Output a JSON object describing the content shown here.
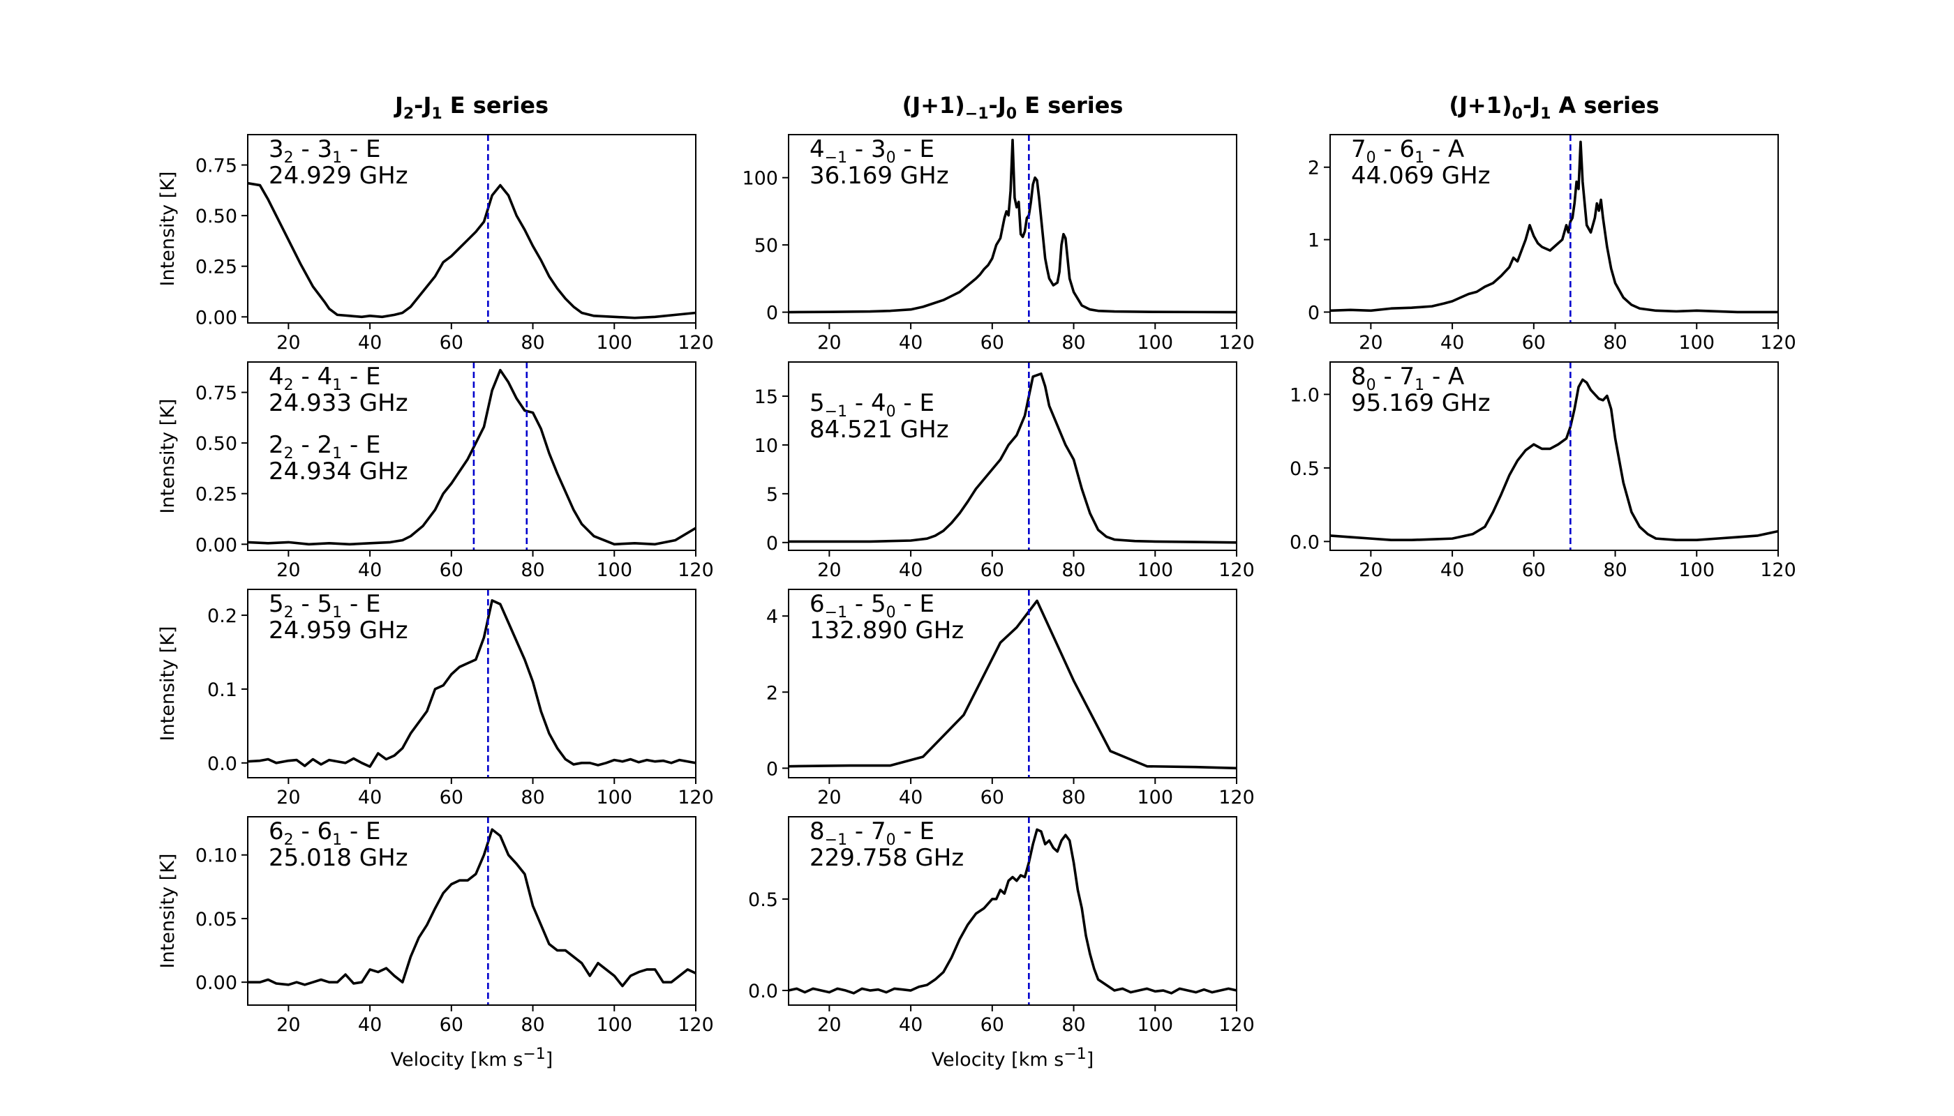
{
  "figure": {
    "column_titles": [
      {
        "main": "J",
        "sub1": "2",
        "mid": "-J",
        "sub2": "1",
        "tail": " E series"
      },
      {
        "main": "(J+1)",
        "sub1": "−1",
        "mid": "-J",
        "sub2": "0",
        "tail": " E series"
      },
      {
        "main": "(J+1)",
        "sub1": "0",
        "mid": "-J",
        "sub2": "1",
        "tail": " A series"
      }
    ],
    "ylabel": "Intensity [K]",
    "xlabel": {
      "text": "Velocity [km s",
      "sup": "−1",
      "close": "]"
    }
  },
  "chart_data": [
    {
      "type": "line",
      "col": 0,
      "row": 0,
      "label": {
        "a": "3",
        "as": "2",
        "b": "3",
        "bs": "1",
        "sym": "E"
      },
      "freq": "24.929 GHz",
      "xlim": [
        10,
        120
      ],
      "ylim": [
        -0.03,
        0.9
      ],
      "yticks": [
        0.0,
        0.25,
        0.5,
        0.75
      ],
      "ytick_labels": [
        "0.00",
        "0.25",
        "0.50",
        "0.75"
      ],
      "xticks": [
        20,
        40,
        60,
        80,
        100,
        120
      ],
      "vlines": [
        69
      ],
      "show_ylabel": true,
      "show_xlabel": false,
      "x": [
        10,
        13,
        15,
        17,
        20,
        23,
        26,
        29,
        30,
        32,
        35,
        38,
        40,
        43,
        46,
        48,
        50,
        52,
        54,
        56,
        58,
        60,
        62,
        64,
        66,
        68,
        70,
        72,
        74,
        76,
        78,
        80,
        82,
        84,
        86,
        88,
        90,
        92,
        95,
        100,
        105,
        110,
        115,
        120
      ],
      "y": [
        0.66,
        0.65,
        0.58,
        0.5,
        0.38,
        0.26,
        0.15,
        0.07,
        0.04,
        0.01,
        0.005,
        0.0,
        0.005,
        0.0,
        0.01,
        0.02,
        0.05,
        0.1,
        0.15,
        0.2,
        0.27,
        0.3,
        0.34,
        0.38,
        0.42,
        0.47,
        0.6,
        0.65,
        0.6,
        0.5,
        0.43,
        0.35,
        0.28,
        0.2,
        0.14,
        0.09,
        0.05,
        0.02,
        0.005,
        0.0,
        -0.005,
        0.0,
        0.01,
        0.02
      ]
    },
    {
      "type": "line",
      "col": 0,
      "row": 1,
      "label": {
        "a": "4",
        "as": "2",
        "b": "4",
        "bs": "1",
        "sym": "E"
      },
      "freq": "24.933 GHz",
      "label2": {
        "a": "2",
        "as": "2",
        "b": "2",
        "bs": "1",
        "sym": "E"
      },
      "freq2": "24.934 GHz",
      "xlim": [
        10,
        120
      ],
      "ylim": [
        -0.03,
        0.9
      ],
      "yticks": [
        0.0,
        0.25,
        0.5,
        0.75
      ],
      "ytick_labels": [
        "0.00",
        "0.25",
        "0.50",
        "0.75"
      ],
      "xticks": [
        20,
        40,
        60,
        80,
        100,
        120
      ],
      "vlines": [
        65.5,
        78.5
      ],
      "show_ylabel": true,
      "show_xlabel": false,
      "x": [
        10,
        15,
        20,
        25,
        30,
        35,
        40,
        45,
        48,
        50,
        53,
        56,
        58,
        60,
        62,
        64,
        66,
        68,
        70,
        72,
        74,
        76,
        78,
        80,
        82,
        84,
        86,
        88,
        90,
        92,
        95,
        100,
        105,
        110,
        115,
        120
      ],
      "y": [
        0.01,
        0.005,
        0.01,
        0.0,
        0.005,
        0.0,
        0.005,
        0.01,
        0.02,
        0.04,
        0.09,
        0.17,
        0.25,
        0.3,
        0.36,
        0.42,
        0.5,
        0.58,
        0.76,
        0.86,
        0.8,
        0.72,
        0.66,
        0.65,
        0.57,
        0.45,
        0.35,
        0.26,
        0.17,
        0.1,
        0.04,
        0.0,
        0.005,
        0.0,
        0.02,
        0.08
      ]
    },
    {
      "type": "line",
      "col": 0,
      "row": 2,
      "label": {
        "a": "5",
        "as": "2",
        "b": "5",
        "bs": "1",
        "sym": "E"
      },
      "freq": "24.959 GHz",
      "xlim": [
        10,
        120
      ],
      "ylim": [
        -0.02,
        0.235
      ],
      "yticks": [
        0.0,
        0.1,
        0.2
      ],
      "ytick_labels": [
        "0.0",
        "0.1",
        "0.2"
      ],
      "xticks": [
        20,
        40,
        60,
        80,
        100,
        120
      ],
      "vlines": [
        69
      ],
      "show_ylabel": true,
      "show_xlabel": false,
      "x": [
        10,
        13,
        15,
        17,
        20,
        22,
        24,
        26,
        28,
        30,
        32,
        34,
        36,
        38,
        40,
        42,
        44,
        46,
        48,
        50,
        52,
        54,
        56,
        58,
        60,
        62,
        64,
        66,
        68,
        70,
        72,
        74,
        76,
        78,
        80,
        82,
        84,
        86,
        88,
        90,
        92,
        94,
        96,
        98,
        100,
        102,
        104,
        106,
        108,
        110,
        112,
        114,
        116,
        118,
        120
      ],
      "y": [
        0.002,
        0.003,
        0.005,
        0.0,
        0.003,
        0.004,
        -0.004,
        0.005,
        -0.002,
        0.004,
        0.002,
        0.0,
        0.006,
        0.0,
        -0.005,
        0.013,
        0.005,
        0.01,
        0.02,
        0.04,
        0.055,
        0.07,
        0.1,
        0.105,
        0.12,
        0.13,
        0.135,
        0.14,
        0.17,
        0.22,
        0.215,
        0.19,
        0.165,
        0.14,
        0.11,
        0.07,
        0.04,
        0.02,
        0.005,
        -0.002,
        0.0,
        0.0,
        -0.003,
        0.0,
        0.004,
        0.002,
        0.005,
        0.001,
        0.004,
        0.002,
        0.003,
        0.0,
        0.004,
        0.002,
        0.0
      ]
    },
    {
      "type": "line",
      "col": 0,
      "row": 3,
      "label": {
        "a": "6",
        "as": "2",
        "b": "6",
        "bs": "1",
        "sym": "E"
      },
      "freq": "25.018 GHz",
      "xlim": [
        10,
        120
      ],
      "ylim": [
        -0.018,
        0.13
      ],
      "yticks": [
        0.0,
        0.05,
        0.1
      ],
      "ytick_labels": [
        "0.00",
        "0.05",
        "0.10"
      ],
      "xticks": [
        20,
        40,
        60,
        80,
        100,
        120
      ],
      "vlines": [
        69
      ],
      "show_ylabel": true,
      "show_xlabel": true,
      "x": [
        10,
        13,
        15,
        17,
        20,
        22,
        24,
        26,
        28,
        30,
        32,
        34,
        36,
        38,
        40,
        42,
        44,
        46,
        48,
        50,
        52,
        54,
        56,
        58,
        60,
        62,
        64,
        66,
        68,
        70,
        72,
        74,
        76,
        78,
        80,
        82,
        84,
        86,
        88,
        90,
        92,
        94,
        96,
        98,
        100,
        102,
        104,
        106,
        108,
        110,
        112,
        114,
        116,
        118,
        120
      ],
      "y": [
        0.0,
        0.0,
        0.002,
        -0.001,
        -0.002,
        0.0,
        -0.002,
        0.0,
        0.002,
        0.0,
        0.0,
        0.006,
        -0.001,
        0.0,
        0.01,
        0.008,
        0.011,
        0.005,
        0.0,
        0.02,
        0.035,
        0.045,
        0.058,
        0.07,
        0.077,
        0.08,
        0.08,
        0.085,
        0.1,
        0.12,
        0.115,
        0.1,
        0.093,
        0.085,
        0.06,
        0.045,
        0.03,
        0.025,
        0.025,
        0.02,
        0.015,
        0.005,
        0.015,
        0.01,
        0.005,
        -0.003,
        0.005,
        0.008,
        0.01,
        0.01,
        0.0,
        0.0,
        0.005,
        0.01,
        0.007
      ]
    },
    {
      "type": "line",
      "col": 1,
      "row": 0,
      "label": {
        "a": "4",
        "as": "−1",
        "b": "3",
        "bs": "0",
        "sym": "E"
      },
      "freq": "36.169 GHz",
      "xlim": [
        10,
        120
      ],
      "ylim": [
        -8,
        132
      ],
      "yticks": [
        0,
        50,
        100
      ],
      "ytick_labels": [
        "0",
        "50",
        "100"
      ],
      "xticks": [
        20,
        40,
        60,
        80,
        100,
        120
      ],
      "vlines": [
        69
      ],
      "show_ylabel": false,
      "show_xlabel": false,
      "x": [
        10,
        20,
        30,
        35,
        40,
        43,
        45,
        48,
        50,
        52,
        54,
        56,
        57,
        58,
        59,
        60,
        61,
        62,
        63,
        63.5,
        64,
        64.5,
        65,
        65.5,
        66,
        66.5,
        67,
        67.5,
        68,
        68.5,
        69,
        69.5,
        70,
        70.5,
        71,
        71.5,
        72,
        72.5,
        73,
        73.5,
        74,
        75,
        76,
        76.5,
        77,
        77.5,
        78,
        78.5,
        79,
        80,
        82,
        84,
        86,
        90,
        100,
        110,
        120
      ],
      "y": [
        0,
        0.2,
        0.5,
        1,
        2,
        4,
        6,
        9,
        12,
        15,
        20,
        25,
        28,
        32,
        35,
        40,
        50,
        55,
        70,
        75,
        72,
        90,
        128,
        85,
        78,
        82,
        58,
        56,
        60,
        70,
        72,
        82,
        95,
        100,
        98,
        85,
        70,
        55,
        40,
        32,
        25,
        20,
        22,
        30,
        50,
        58,
        55,
        40,
        25,
        15,
        5,
        2,
        1,
        0.5,
        0.2,
        0.1,
        0
      ]
    },
    {
      "type": "line",
      "col": 1,
      "row": 1,
      "label": {
        "a": "5",
        "as": "−1",
        "b": "4",
        "bs": "0",
        "sym": "E"
      },
      "freq": "84.521 GHz",
      "xlim": [
        10,
        120
      ],
      "ylim": [
        -0.8,
        18.5
      ],
      "yticks": [
        0,
        5,
        10,
        15
      ],
      "ytick_labels": [
        "0",
        "5",
        "10",
        "15"
      ],
      "xticks": [
        20,
        40,
        60,
        80,
        100,
        120
      ],
      "vlines": [
        69
      ],
      "show_ylabel": false,
      "show_xlabel": false,
      "x": [
        10,
        20,
        30,
        40,
        44,
        46,
        48,
        50,
        52,
        54,
        56,
        58,
        60,
        62,
        64,
        66,
        68,
        69,
        70,
        72,
        73,
        74,
        76,
        78,
        80,
        82,
        84,
        86,
        88,
        90,
        95,
        100,
        110,
        120
      ],
      "y": [
        0.1,
        0.1,
        0.1,
        0.2,
        0.4,
        0.7,
        1.2,
        2,
        3,
        4.2,
        5.5,
        6.5,
        7.5,
        8.5,
        10,
        11,
        13,
        15,
        17,
        17.3,
        16,
        14,
        12,
        10,
        8.5,
        5.5,
        3,
        1.3,
        0.6,
        0.3,
        0.15,
        0.1,
        0.05,
        0
      ]
    },
    {
      "type": "line",
      "col": 1,
      "row": 2,
      "label": {
        "a": "6",
        "as": "−1",
        "b": "5",
        "bs": "0",
        "sym": "E"
      },
      "freq": "132.890 GHz",
      "xlim": [
        10,
        120
      ],
      "ylim": [
        -0.25,
        4.7
      ],
      "yticks": [
        0,
        2,
        4
      ],
      "ytick_labels": [
        "0",
        "2",
        "4"
      ],
      "xticks": [
        20,
        40,
        60,
        80,
        100,
        120
      ],
      "vlines": [
        69
      ],
      "show_ylabel": false,
      "show_xlabel": false,
      "x": [
        10,
        25,
        35,
        43,
        53,
        62,
        66,
        71,
        80,
        89,
        98,
        110,
        120
      ],
      "y": [
        0.05,
        0.07,
        0.07,
        0.3,
        1.4,
        3.3,
        3.7,
        4.4,
        2.3,
        0.45,
        0.05,
        0.03,
        0.0
      ]
    },
    {
      "type": "line",
      "col": 1,
      "row": 3,
      "label": {
        "a": "8",
        "as": "−1",
        "b": "7",
        "bs": "0",
        "sym": "E"
      },
      "freq": "229.758 GHz",
      "xlim": [
        10,
        120
      ],
      "ylim": [
        -0.08,
        0.95
      ],
      "yticks": [
        0.0,
        0.5
      ],
      "ytick_labels": [
        "0.0",
        "0.5"
      ],
      "xticks": [
        20,
        40,
        60,
        80,
        100,
        120
      ],
      "vlines": [
        69
      ],
      "show_ylabel": false,
      "show_xlabel": true,
      "x": [
        10,
        12,
        14,
        16,
        18,
        20,
        22,
        24,
        26,
        28,
        30,
        32,
        34,
        36,
        38,
        40,
        42,
        44,
        46,
        48,
        50,
        52,
        54,
        56,
        58,
        60,
        61,
        62,
        63,
        64,
        65,
        66,
        67,
        68,
        69,
        70,
        71,
        72,
        73,
        74,
        75,
        76,
        77,
        78,
        79,
        80,
        81,
        82,
        83,
        84,
        85,
        86,
        88,
        90,
        92,
        94,
        96,
        98,
        100,
        102,
        104,
        106,
        108,
        110,
        112,
        114,
        116,
        118,
        120
      ],
      "y": [
        0.0,
        0.01,
        -0.01,
        0.01,
        0.0,
        -0.01,
        0.01,
        0.0,
        -0.015,
        0.01,
        0.0,
        0.005,
        -0.01,
        0.01,
        0.005,
        0.0,
        0.02,
        0.03,
        0.06,
        0.1,
        0.18,
        0.28,
        0.36,
        0.42,
        0.45,
        0.5,
        0.5,
        0.55,
        0.53,
        0.6,
        0.62,
        0.6,
        0.63,
        0.62,
        0.7,
        0.8,
        0.88,
        0.87,
        0.8,
        0.82,
        0.78,
        0.76,
        0.82,
        0.85,
        0.82,
        0.7,
        0.55,
        0.45,
        0.3,
        0.2,
        0.12,
        0.06,
        0.03,
        0.0,
        0.01,
        -0.01,
        0.0,
        0.01,
        -0.005,
        0.0,
        -0.015,
        0.01,
        0.0,
        -0.01,
        0.005,
        -0.01,
        0.0,
        0.01,
        0.0
      ]
    },
    {
      "type": "line",
      "col": 2,
      "row": 0,
      "label": {
        "a": "7",
        "as": "0",
        "b": "6",
        "bs": "1",
        "sym": "A"
      },
      "freq": "44.069 GHz",
      "xlim": [
        10,
        120
      ],
      "ylim": [
        -0.15,
        2.45
      ],
      "yticks": [
        0,
        1,
        2
      ],
      "ytick_labels": [
        "0",
        "1",
        "2"
      ],
      "xticks": [
        20,
        40,
        60,
        80,
        100,
        120
      ],
      "vlines": [
        69
      ],
      "show_ylabel": false,
      "show_xlabel": false,
      "x": [
        10,
        15,
        20,
        25,
        30,
        35,
        38,
        40,
        42,
        44,
        46,
        48,
        50,
        52,
        54,
        55,
        56,
        57,
        58,
        59,
        60,
        61,
        62,
        64,
        66,
        67,
        68,
        68.5,
        69,
        69.5,
        70,
        70.5,
        71,
        71.5,
        72,
        72.5,
        73,
        74,
        75,
        75.5,
        76,
        76.5,
        77,
        77.5,
        78,
        79,
        80,
        82,
        84,
        86,
        90,
        95,
        100,
        110,
        120
      ],
      "y": [
        0.02,
        0.03,
        0.02,
        0.05,
        0.06,
        0.08,
        0.12,
        0.15,
        0.2,
        0.25,
        0.28,
        0.35,
        0.4,
        0.5,
        0.62,
        0.75,
        0.7,
        0.85,
        1.0,
        1.2,
        1.05,
        0.95,
        0.9,
        0.85,
        0.95,
        1.0,
        1.2,
        1.1,
        1.25,
        1.3,
        1.5,
        1.8,
        1.7,
        2.35,
        1.8,
        1.5,
        1.2,
        1.1,
        1.3,
        1.5,
        1.4,
        1.55,
        1.3,
        1.1,
        0.9,
        0.6,
        0.4,
        0.2,
        0.1,
        0.05,
        0.02,
        0.01,
        0.02,
        0.0,
        0.0
      ]
    },
    {
      "type": "line",
      "col": 2,
      "row": 1,
      "label": {
        "a": "8",
        "as": "0",
        "b": "7",
        "bs": "1",
        "sym": "A"
      },
      "freq": "95.169 GHz",
      "xlim": [
        10,
        120
      ],
      "ylim": [
        -0.06,
        1.22
      ],
      "yticks": [
        0.0,
        0.5,
        1.0
      ],
      "ytick_labels": [
        "0.0",
        "0.5",
        "1.0"
      ],
      "xticks": [
        20,
        40,
        60,
        80,
        100,
        120
      ],
      "vlines": [
        69
      ],
      "show_ylabel": false,
      "show_xlabel": false,
      "x": [
        10,
        15,
        20,
        25,
        30,
        35,
        40,
        45,
        48,
        50,
        52,
        54,
        56,
        58,
        60,
        62,
        64,
        66,
        68,
        69,
        70,
        71,
        72,
        73,
        74,
        75,
        76,
        77,
        78,
        79,
        80,
        82,
        84,
        86,
        88,
        90,
        95,
        100,
        105,
        110,
        115,
        120
      ],
      "y": [
        0.04,
        0.03,
        0.02,
        0.01,
        0.01,
        0.015,
        0.02,
        0.05,
        0.1,
        0.2,
        0.32,
        0.45,
        0.55,
        0.62,
        0.66,
        0.63,
        0.63,
        0.66,
        0.7,
        0.78,
        0.9,
        1.05,
        1.1,
        1.08,
        1.03,
        1.0,
        0.97,
        0.96,
        0.99,
        0.9,
        0.7,
        0.4,
        0.2,
        0.1,
        0.05,
        0.02,
        0.01,
        0.01,
        0.02,
        0.03,
        0.04,
        0.07
      ]
    }
  ]
}
